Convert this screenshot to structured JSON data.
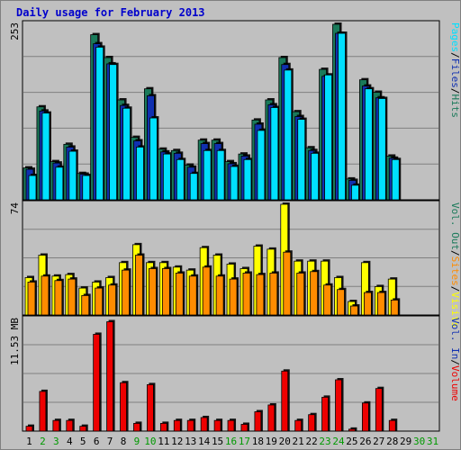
{
  "chart_data": {
    "type": "bar",
    "title": "Daily usage for February 2013",
    "categories": [
      "1",
      "2",
      "3",
      "4",
      "5",
      "6",
      "7",
      "8",
      "9",
      "10",
      "11",
      "12",
      "13",
      "14",
      "15",
      "16",
      "17",
      "18",
      "19",
      "20",
      "21",
      "22",
      "23",
      "24",
      "25",
      "26",
      "27",
      "28",
      "29",
      "30",
      "31"
    ],
    "weekend_days": [
      "2",
      "3",
      "9",
      "10",
      "16",
      "17",
      "23",
      "24",
      "30",
      "31"
    ],
    "colors": {
      "hits": "#1a7a5a",
      "files": "#1030b0",
      "pages": "#00e0ff",
      "visits": "#ffff00",
      "sites": "#ff8c00",
      "volume": "#ee0000",
      "weekday_label": "#000000",
      "weekend_label": "#009900"
    },
    "panels": [
      {
        "name": "hits-files-pages",
        "ymax_label": "253",
        "ymax": 253,
        "legend": [
          {
            "text": "Hits",
            "color": "#1a7a5a"
          },
          {
            "text": "Files",
            "color": "#1030b0"
          },
          {
            "text": "Pages",
            "color": "#00e0ff"
          }
        ],
        "series": [
          {
            "name": "Hits",
            "values": [
              46,
              134,
              55,
              80,
              38,
              238,
              205,
              144,
              90,
              160,
              73,
              71,
              50,
              86,
              86,
              55,
              66,
              115,
              144,
              205,
              127,
              75,
              188,
              253,
              30,
              173,
              155,
              63,
              0,
              0,
              0
            ]
          },
          {
            "name": "Files",
            "values": [
              44,
              128,
              53,
              76,
              37,
              225,
              196,
              136,
              85,
              150,
              69,
              67,
              47,
              81,
              81,
              52,
              63,
              109,
              137,
              195,
              120,
              71,
              178,
              240,
              28,
              164,
              147,
              60,
              0,
              0,
              0
            ]
          },
          {
            "name": "Pages",
            "values": [
              35,
              125,
              47,
              70,
              35,
              220,
              195,
              132,
              76,
              118,
              66,
              58,
              38,
              71,
              71,
              48,
              58,
              100,
              133,
              187,
              116,
              67,
              180,
              240,
              21,
              160,
              146,
              58,
              0,
              0,
              0
            ]
          }
        ]
      },
      {
        "name": "visits-sites",
        "ymax_label": "74",
        "ymax": 74,
        "legend": [
          {
            "text": "Visits",
            "color": "#ffff00"
          },
          {
            "text": "Sites",
            "color": "#ff8c00"
          },
          {
            "text": "Vol. Out",
            "color": "#1a7a5a"
          }
        ],
        "series": [
          {
            "name": "Visits",
            "values": [
              25,
              40,
              26,
              27,
              18,
              22,
              25,
              35,
              47,
              35,
              35,
              32,
              30,
              45,
              40,
              34,
              31,
              46,
              44,
              74,
              36,
              36,
              36,
              25,
              9,
              35,
              19,
              24,
              0,
              0,
              0
            ]
          },
          {
            "name": "Sites",
            "values": [
              22,
              26,
              23,
              24,
              13,
              18,
              20,
              30,
              40,
              31,
              31,
              28,
              26,
              32,
              26,
              24,
              28,
              27,
              28,
              42,
              28,
              29,
              20,
              17,
              6,
              15,
              15,
              10,
              0,
              0,
              0
            ]
          }
        ]
      },
      {
        "name": "volume",
        "ymax_label": "11.53 MB",
        "ymax": 11.53,
        "legend": [
          {
            "text": "Volume",
            "color": "#ee0000"
          },
          {
            "text": "Vol. In",
            "color": "#1030b0"
          }
        ],
        "series": [
          {
            "name": "Volume",
            "values": [
              0.5,
              4.1,
              1.1,
              1.1,
              0.5,
              10.0,
              11.3,
              5.0,
              0.8,
              4.8,
              0.8,
              1.1,
              1.1,
              1.4,
              1.1,
              1.1,
              0.7,
              2.0,
              2.7,
              6.2,
              1.1,
              1.7,
              3.5,
              5.3,
              0.2,
              2.9,
              4.4,
              1.1,
              0,
              0,
              0
            ]
          }
        ]
      }
    ]
  }
}
